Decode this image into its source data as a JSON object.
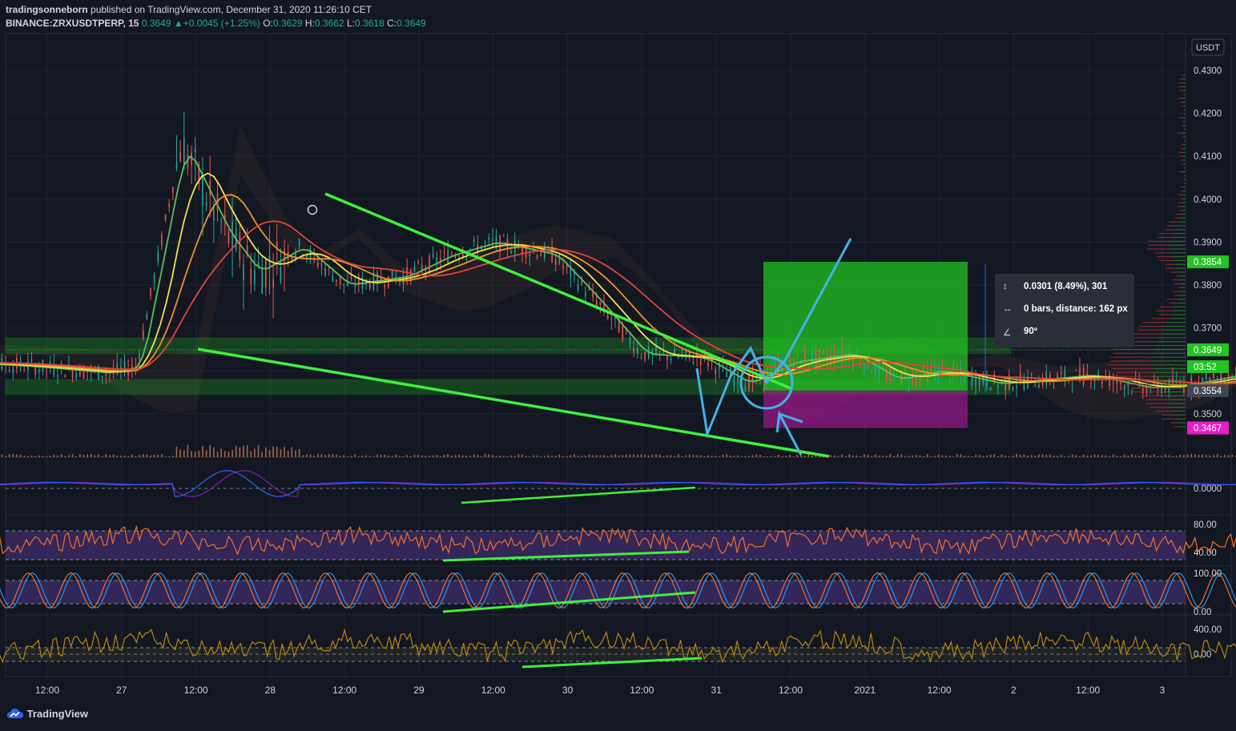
{
  "header": {
    "author": "tradingsonneborn",
    "published": "published on TradingView.com, December 31, 2020 11:26:10 CET",
    "symbol": "BINANCE:ZRXUSDTPERP, 15",
    "last": "0.3649",
    "change": "+0.0045 (+1.25%)",
    "o_label": "O:",
    "o": "0.3629",
    "h_label": "H:",
    "h": "0.3662",
    "l_label": "L:",
    "l": "0.3618",
    "c_label": "C:",
    "c": "0.3649"
  },
  "measure": {
    "line1": "0.0301 (8.49%), 301",
    "line2": "0 bars, distance: 162 px",
    "line3": "90º"
  },
  "footer": {
    "brand": "TradingView"
  },
  "colors": {
    "background": "#131722",
    "up": "#26a69a",
    "green_zone": "#22c322",
    "pink_zone": "#b3179e",
    "trendline": "#3cf23c",
    "blue_arrow": "#42b3e8",
    "ema_yellow": "#f3e34a",
    "ema_orange": "#f0902c",
    "ema_red": "#e2453c",
    "ema_green": "#5fbf5f"
  },
  "chart_data": {
    "type": "line",
    "currency": "USDT",
    "price_axis": {
      "ticks": [
        "0.4300",
        "0.4200",
        "0.4100",
        "0.4000",
        "0.3900",
        "0.3800",
        "0.3700",
        "0.3500"
      ],
      "ylim": [
        0.3435,
        0.4335
      ]
    },
    "price_labels": [
      {
        "value": "0.3854",
        "color": "#22c322"
      },
      {
        "value": "0.3649",
        "color": "#22c322"
      },
      {
        "value": "03:52",
        "color": "#22c322"
      },
      {
        "value": "0.3554",
        "color": "#434651"
      },
      {
        "value": "0.3467",
        "color": "#e91ec4"
      }
    ],
    "time_axis": [
      "12:00",
      "27",
      "12:00",
      "28",
      "12:00",
      "29",
      "12:00",
      "30",
      "12:00",
      "31",
      "12:00",
      "2021",
      "12:00",
      "2",
      "12:00",
      "3"
    ],
    "price_series": {
      "x": [
        0,
        0.5,
        1,
        1.2,
        1.5,
        1.8,
        2,
        2.3,
        2.6,
        3,
        3.3,
        3.6,
        4,
        4.3,
        4.6,
        5,
        5.3,
        5.6,
        6,
        6.3,
        6.6,
        7,
        7.3,
        7.6,
        8,
        8.3,
        8.6,
        8.9
      ],
      "values": [
        0.362,
        0.361,
        0.3595,
        0.361,
        0.413,
        0.392,
        0.383,
        0.389,
        0.38,
        0.382,
        0.387,
        0.39,
        0.387,
        0.376,
        0.364,
        0.363,
        0.357,
        0.362,
        0.364,
        0.358,
        0.36,
        0.357,
        0.358,
        0.359,
        0.356,
        0.357,
        0.359,
        0.3649
      ]
    },
    "zones": {
      "target": [
        0.3554,
        0.3854
      ],
      "stop": [
        0.3467,
        0.3554
      ],
      "support_band_upper": [
        0.364,
        0.3677
      ],
      "support_band_lower": [
        0.3545,
        0.358
      ]
    },
    "oscillators": [
      {
        "name": "macd",
        "ticks": [
          "0.0000"
        ]
      },
      {
        "name": "rsi",
        "ticks": [
          "80.00",
          "40.00"
        ]
      },
      {
        "name": "stoch",
        "ticks": [
          "100.00",
          "0.00"
        ]
      },
      {
        "name": "cci",
        "ticks": [
          "400.00",
          "0.00"
        ]
      }
    ]
  }
}
